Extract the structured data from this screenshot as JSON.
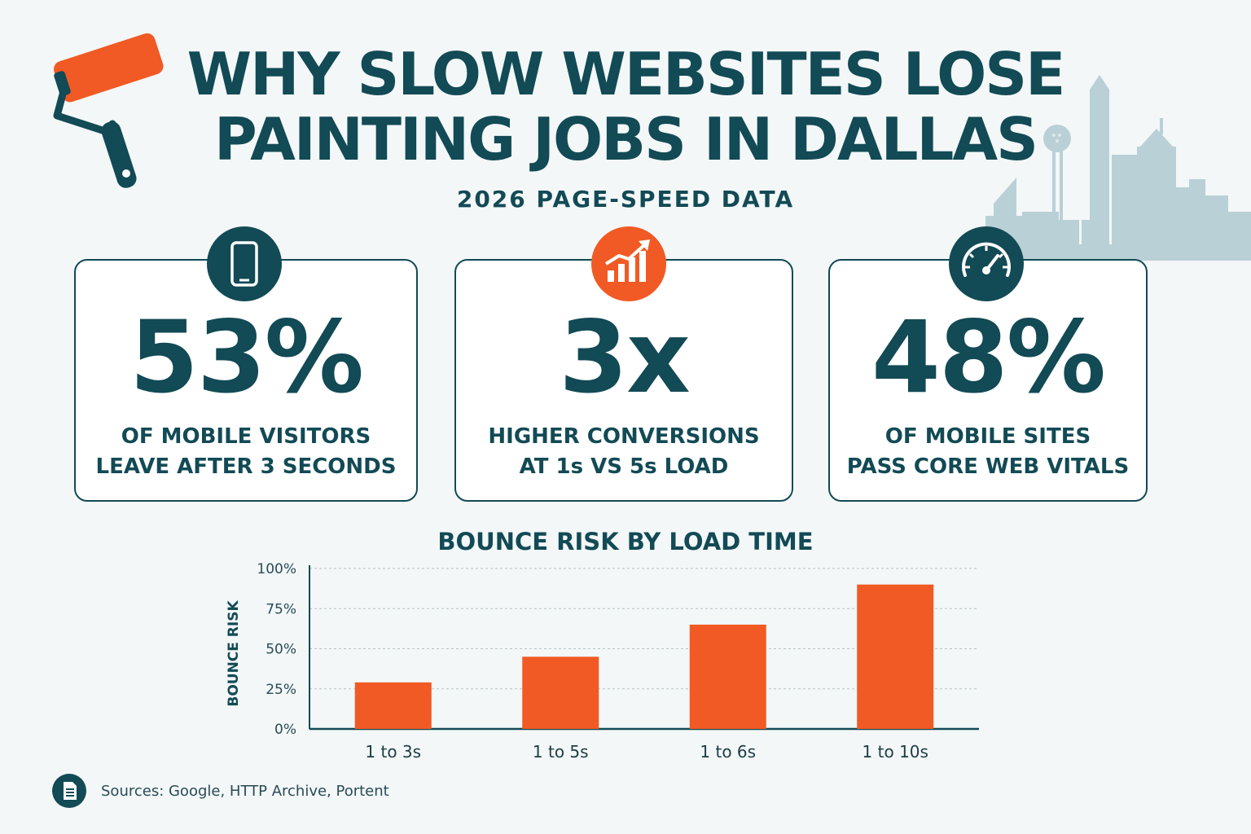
{
  "title_line1": "WHY SLOW WEBSITES LOSE",
  "title_line2": "PAINTING JOBS IN DALLAS",
  "subtitle": "2026 PAGE-SPEED DATA",
  "colors": {
    "primary": "#124a55",
    "accent": "#f15a24",
    "background": "#f3f7f8",
    "skyline": "#b9d0d6"
  },
  "stats": [
    {
      "icon": "smartphone-icon",
      "value": "53%",
      "line1": "OF MOBILE VISITORS",
      "line2": "LEAVE AFTER 3 SECONDS"
    },
    {
      "icon": "growth-chart-icon",
      "value": "3x",
      "line1": "HIGHER CONVERSIONS",
      "line2": "AT 1s VS 5s LOAD"
    },
    {
      "icon": "speedometer-icon",
      "value": "48%",
      "line1": "OF MOBILE SITES",
      "line2": "PASS CORE WEB VITALS"
    }
  ],
  "chart_title": "BOUNCE RISK BY LOAD TIME",
  "chart_data": {
    "type": "bar",
    "categories": [
      "1 to 3s",
      "1 to 5s",
      "1 to 6s",
      "1 to 10s"
    ],
    "values": [
      29,
      45,
      65,
      90
    ],
    "title": "BOUNCE RISK BY LOAD TIME",
    "xlabel": "",
    "ylabel": "BOUNCE RISK",
    "ylim": [
      0,
      100
    ],
    "yticks": [
      "0%",
      "25%",
      "50%",
      "75%",
      "100%"
    ],
    "ytick_values": [
      0,
      25,
      50,
      75,
      100
    ],
    "grid": true,
    "color": "#f15a24"
  },
  "sources": "Sources: Google, HTTP Archive, Portent",
  "sources_icon": "document-icon"
}
